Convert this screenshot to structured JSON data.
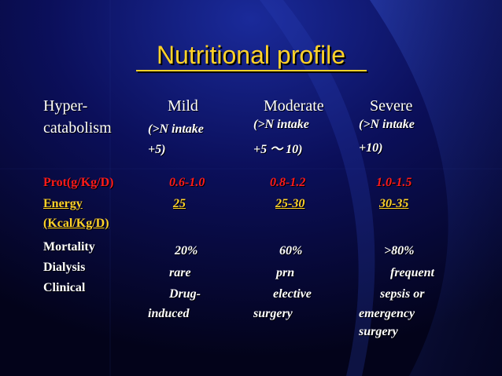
{
  "title": "Nutritional profile",
  "header": {
    "col0": [
      "Hyper-",
      "catabolism"
    ],
    "mild": {
      "label": "Mild",
      "sub": [
        "(>N intake",
        "+5)"
      ]
    },
    "moderate": {
      "label": "Moderate",
      "sub": [
        "(>N intake",
        "+5  ～  10)"
      ]
    },
    "severe": {
      "label": "Severe",
      "sub": [
        "(>N intake",
        "+10)"
      ]
    }
  },
  "rows": {
    "prot": {
      "label": "Prot(g/Kg/D)",
      "mild": "0.6-1.0",
      "moderate": "0.8-1.2",
      "severe": "1.0-1.5"
    },
    "energy": {
      "label": [
        "Energy",
        "(Kcal/Kg/D)"
      ],
      "mild": "25",
      "moderate": "25-30",
      "severe": "30-35"
    },
    "mortality": {
      "label": "Mortality",
      "mild": "20%",
      "moderate": "60%",
      "severe": ">80%"
    },
    "dialysis": {
      "label": "Dialysis",
      "mild": "rare",
      "moderate": "prn",
      "severe": "frequent"
    },
    "clinical": {
      "label": "Clinical",
      "mild": [
        "Drug-",
        "induced"
      ],
      "moderate": [
        "elective",
        "surgery"
      ],
      "severe": [
        "sepsis or",
        "emergency",
        "surgery"
      ]
    }
  },
  "colors": {
    "title": "#ffd22a",
    "protein_row": "#ff1a1a",
    "energy_row": "#ffd22a",
    "background": "#05051a"
  }
}
